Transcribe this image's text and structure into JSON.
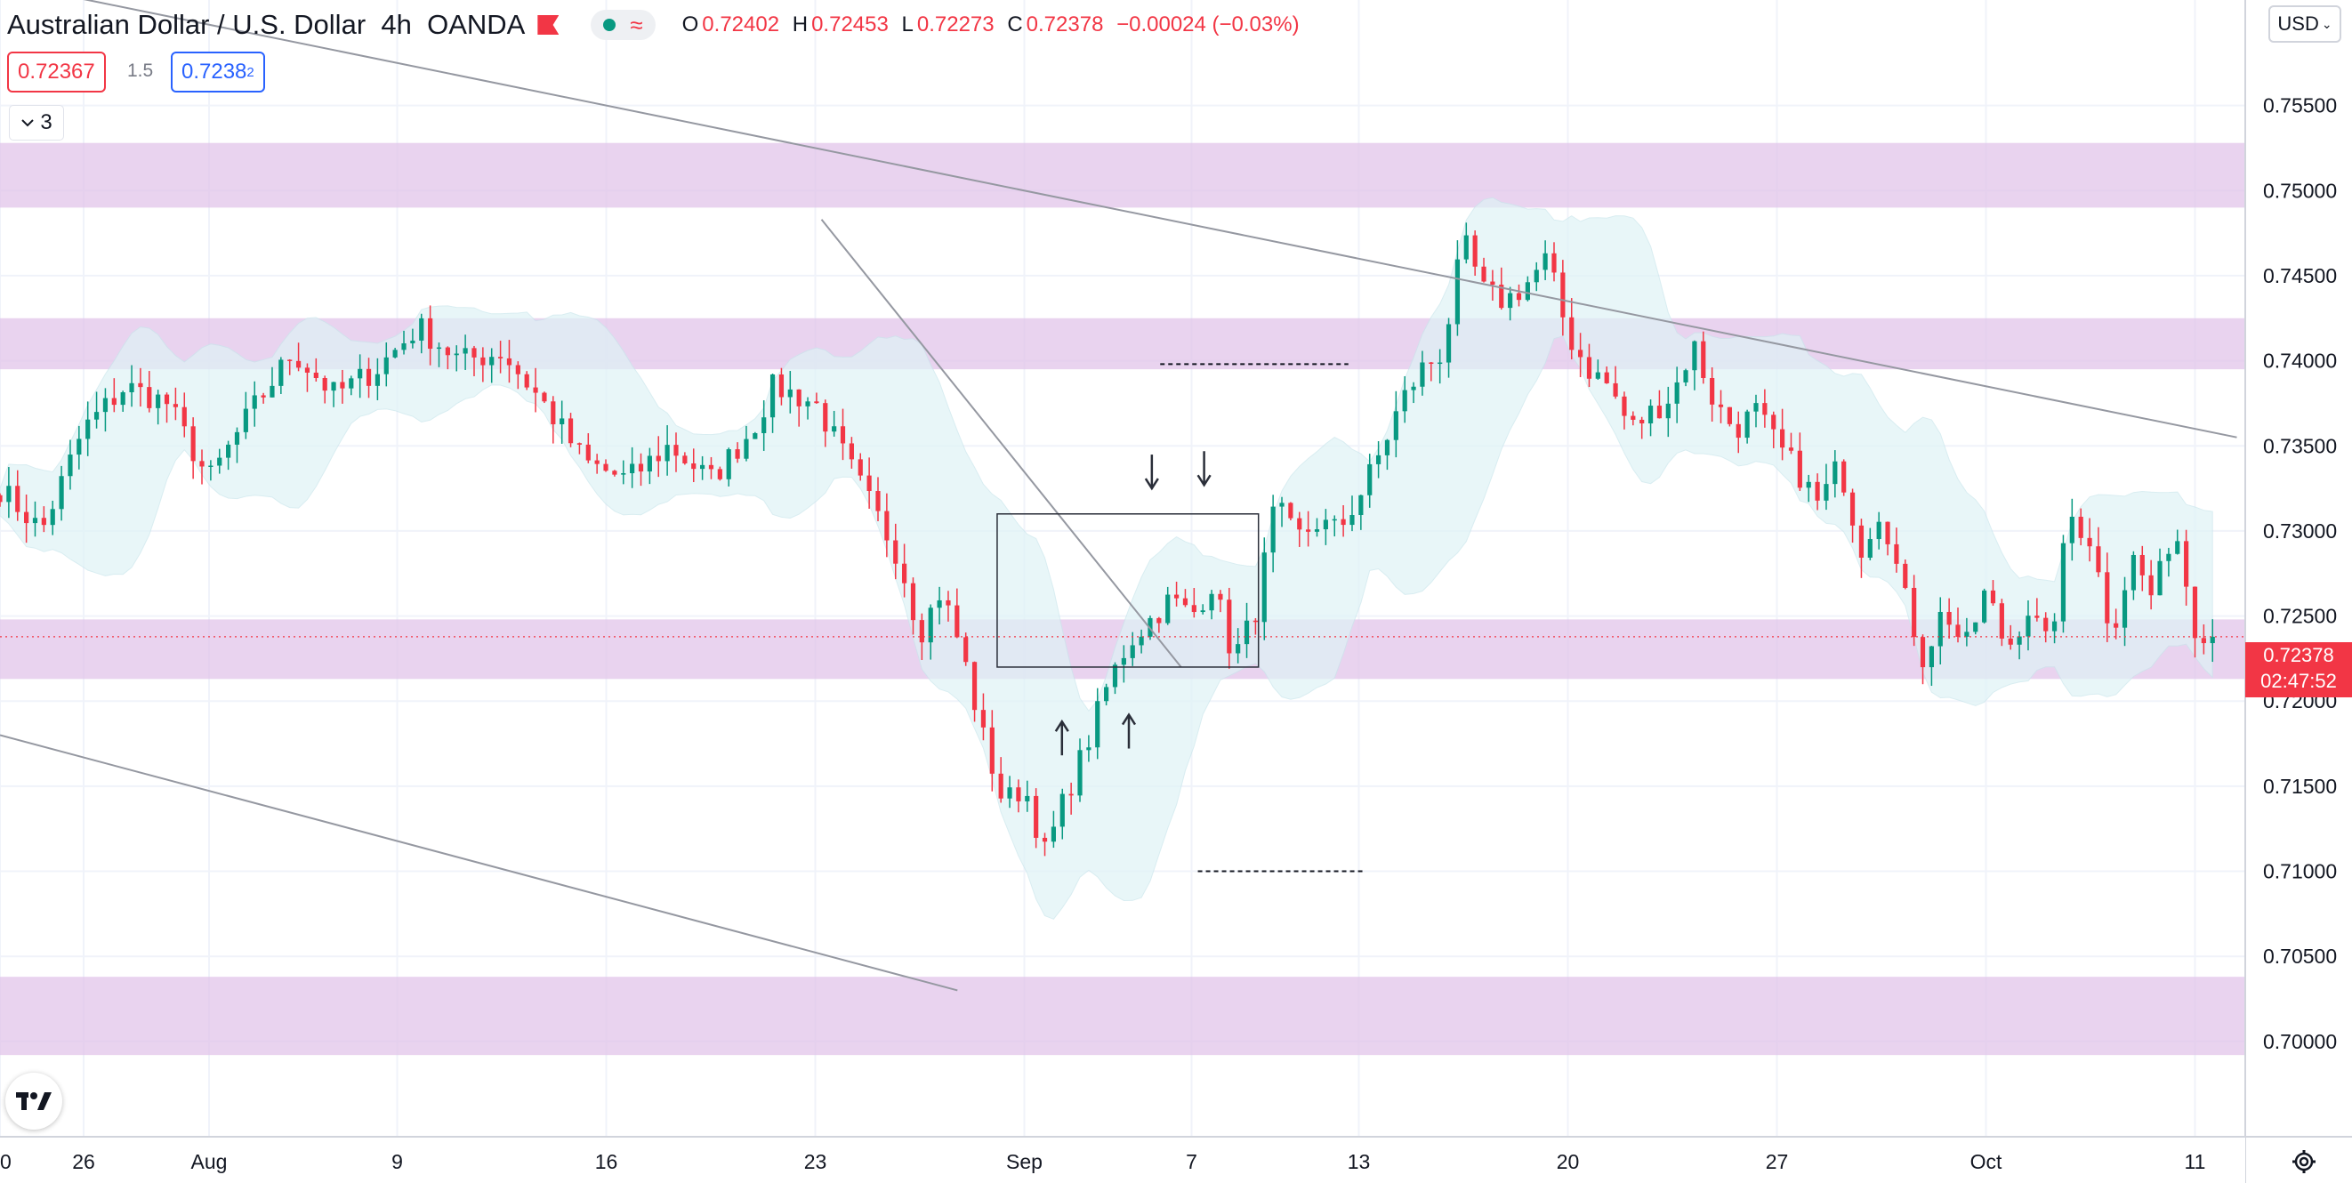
{
  "header": {
    "symbol": "Australian Dollar / U.S. Dollar",
    "interval": "4h",
    "exchange": "OANDA",
    "ohlc": {
      "o": "0.72402",
      "h": "0.72453",
      "l": "0.72273",
      "c": "0.72378",
      "change": "−0.00024 (−0.03%)"
    },
    "ohlc_keys": {
      "o": "O",
      "h": "H",
      "l": "L",
      "c": "C"
    }
  },
  "trade": {
    "sell": "0.72367",
    "spread": "1.5",
    "buy": "0.7238",
    "buy_small": "2"
  },
  "indicators_collapse": {
    "count": "3"
  },
  "currency_button": "USD",
  "price_label": {
    "price": "0.72378",
    "countdown": "02:47:52"
  },
  "colors": {
    "up": "#089981",
    "down": "#f23645",
    "zone": "#e1c4e9",
    "band": "#dff3f6",
    "line": "#9598a1",
    "grid": "#f0f3fa"
  },
  "chart_data": {
    "type": "candlestick",
    "y_axis": {
      "ticks": [
        "0.70000",
        "0.70500",
        "0.71000",
        "0.71500",
        "0.72000",
        "0.72500",
        "0.73000",
        "0.73500",
        "0.74000",
        "0.74500",
        "0.75000",
        "0.75500"
      ],
      "range": [
        0.6944,
        0.7612
      ]
    },
    "x_axis": {
      "labels": [
        {
          "text": "30",
          "t": 0
        },
        {
          "text": "26",
          "t": 4
        },
        {
          "text": "Aug",
          "t": 10
        },
        {
          "text": "9",
          "t": 19
        },
        {
          "text": "16",
          "t": 29
        },
        {
          "text": "23",
          "t": 39
        },
        {
          "text": "Sep",
          "t": 49
        },
        {
          "text": "7",
          "t": 57
        },
        {
          "text": "13",
          "t": 65
        },
        {
          "text": "20",
          "t": 75
        },
        {
          "text": "27",
          "t": 85
        },
        {
          "text": "Oct",
          "t": 95
        },
        {
          "text": "11",
          "t": 105
        }
      ],
      "range": [
        0,
        107
      ]
    },
    "price_path": [
      [
        0,
        0.7325
      ],
      [
        2,
        0.73
      ],
      [
        4,
        0.736
      ],
      [
        6,
        0.7385
      ],
      [
        8,
        0.7375
      ],
      [
        10,
        0.733
      ],
      [
        12,
        0.737
      ],
      [
        14,
        0.7405
      ],
      [
        16,
        0.738
      ],
      [
        18,
        0.7395
      ],
      [
        20,
        0.742
      ],
      [
        22,
        0.74
      ],
      [
        24,
        0.7405
      ],
      [
        26,
        0.7375
      ],
      [
        28,
        0.734
      ],
      [
        30,
        0.733
      ],
      [
        32,
        0.735
      ],
      [
        34,
        0.733
      ],
      [
        36,
        0.736
      ],
      [
        37,
        0.7385
      ],
      [
        39,
        0.7375
      ],
      [
        41,
        0.733
      ],
      [
        43,
        0.7285
      ],
      [
        44,
        0.724
      ],
      [
        45,
        0.7265
      ],
      [
        46,
        0.723
      ],
      [
        47,
        0.718
      ],
      [
        48,
        0.714
      ],
      [
        49,
        0.715
      ],
      [
        50,
        0.711
      ],
      [
        51,
        0.7145
      ],
      [
        52,
        0.7175
      ],
      [
        53,
        0.721
      ],
      [
        54,
        0.7235
      ],
      [
        56,
        0.726
      ],
      [
        57,
        0.725
      ],
      [
        58,
        0.727
      ],
      [
        59,
        0.7225
      ],
      [
        60,
        0.725
      ],
      [
        61,
        0.7315
      ],
      [
        62,
        0.7295
      ],
      [
        63,
        0.7305
      ],
      [
        64,
        0.73
      ],
      [
        65,
        0.732
      ],
      [
        66,
        0.7345
      ],
      [
        67,
        0.7375
      ],
      [
        68,
        0.7395
      ],
      [
        69,
        0.7405
      ],
      [
        70,
        0.747
      ],
      [
        71,
        0.744
      ],
      [
        72,
        0.7435
      ],
      [
        73,
        0.7445
      ],
      [
        74,
        0.746
      ],
      [
        75,
        0.7415
      ],
      [
        76,
        0.7395
      ],
      [
        77,
        0.7385
      ],
      [
        78,
        0.736
      ],
      [
        79,
        0.737
      ],
      [
        80,
        0.738
      ],
      [
        81,
        0.741
      ],
      [
        82,
        0.7375
      ],
      [
        83,
        0.736
      ],
      [
        84,
        0.737
      ],
      [
        85,
        0.735
      ],
      [
        86,
        0.7335
      ],
      [
        87,
        0.7315
      ],
      [
        88,
        0.734
      ],
      [
        89,
        0.729
      ],
      [
        90,
        0.7315
      ],
      [
        91,
        0.7265
      ],
      [
        92,
        0.7225
      ],
      [
        93,
        0.7255
      ],
      [
        94,
        0.723
      ],
      [
        95,
        0.7265
      ],
      [
        96,
        0.723
      ],
      [
        97,
        0.7255
      ],
      [
        98,
        0.723
      ],
      [
        99,
        0.731
      ],
      [
        100,
        0.7295
      ],
      [
        101,
        0.724
      ],
      [
        102,
        0.7285
      ],
      [
        103,
        0.726
      ],
      [
        104,
        0.7305
      ],
      [
        105,
        0.7245
      ],
      [
        106,
        0.72378
      ]
    ],
    "resistance_zones": [
      [
        0.749,
        0.7528
      ],
      [
        0.7395,
        0.7425
      ],
      [
        0.7213,
        0.7248
      ],
      [
        0.6992,
        0.7038
      ]
    ],
    "current_price": 0.72378,
    "description_of_drawings": {
      "upper_channel": "descending line from top-left through ~0.7478 at early Sep to ~0.7355 at right edge",
      "lower_channel": "descending line from ~0.7180 at left to ~0.7030 mid-Sep",
      "downtrend": "line from Sep 6 high ~0.7478 down to ~0.7220 late Sep",
      "range_box": "0.7220–0.7310 from Sep 16 to Sep 29",
      "levels": "dashed 0.7398 and 0.7100 short lines to the right"
    }
  }
}
